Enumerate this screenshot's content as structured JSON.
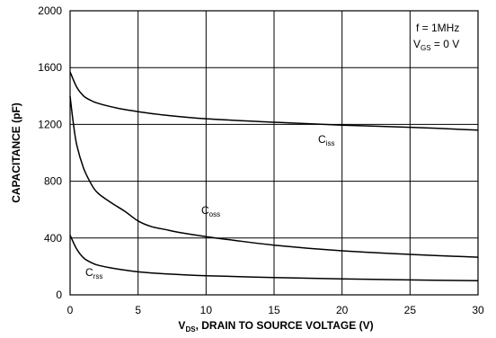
{
  "chart_data": {
    "type": "line",
    "xlabel": {
      "main": "V",
      "sub": "DS",
      "rest": ", DRAIN TO SOURCE VOLTAGE (V)"
    },
    "ylabel": "CAPACITANCE (pF)",
    "xlim": [
      0,
      30
    ],
    "ylim": [
      0,
      2000
    ],
    "xticks": [
      0,
      5,
      10,
      15,
      20,
      25,
      30
    ],
    "yticks": [
      0,
      400,
      800,
      1200,
      1600,
      2000
    ],
    "grid": true,
    "annotations": {
      "freq": "f = 1MHz",
      "vgs": {
        "main": "V",
        "sub": "GS",
        "rest": " = 0 V"
      }
    },
    "series": [
      {
        "name": {
          "main": "C",
          "sub": "iss"
        },
        "x": [
          0,
          0.5,
          1,
          1.5,
          2,
          3,
          4,
          5,
          7,
          10,
          15,
          20,
          25,
          30
        ],
        "y": [
          1570,
          1460,
          1400,
          1370,
          1350,
          1325,
          1305,
          1290,
          1265,
          1240,
          1215,
          1195,
          1180,
          1160
        ]
      },
      {
        "name": {
          "main": "C",
          "sub": "oss"
        },
        "x": [
          0,
          0.25,
          0.5,
          1,
          1.5,
          2,
          3,
          4,
          5,
          6,
          7,
          8,
          10,
          12,
          15,
          20,
          25,
          30
        ],
        "y": [
          1400,
          1200,
          1050,
          890,
          790,
          720,
          650,
          590,
          520,
          480,
          460,
          440,
          410,
          385,
          350,
          310,
          285,
          265
        ]
      },
      {
        "name": {
          "main": "C",
          "sub": "rss"
        },
        "x": [
          0,
          0.5,
          1,
          1.5,
          2,
          3,
          4,
          5,
          7,
          10,
          15,
          20,
          25,
          30
        ],
        "y": [
          420,
          320,
          260,
          230,
          210,
          190,
          175,
          162,
          148,
          135,
          122,
          112,
          105,
          100
        ]
      }
    ]
  }
}
